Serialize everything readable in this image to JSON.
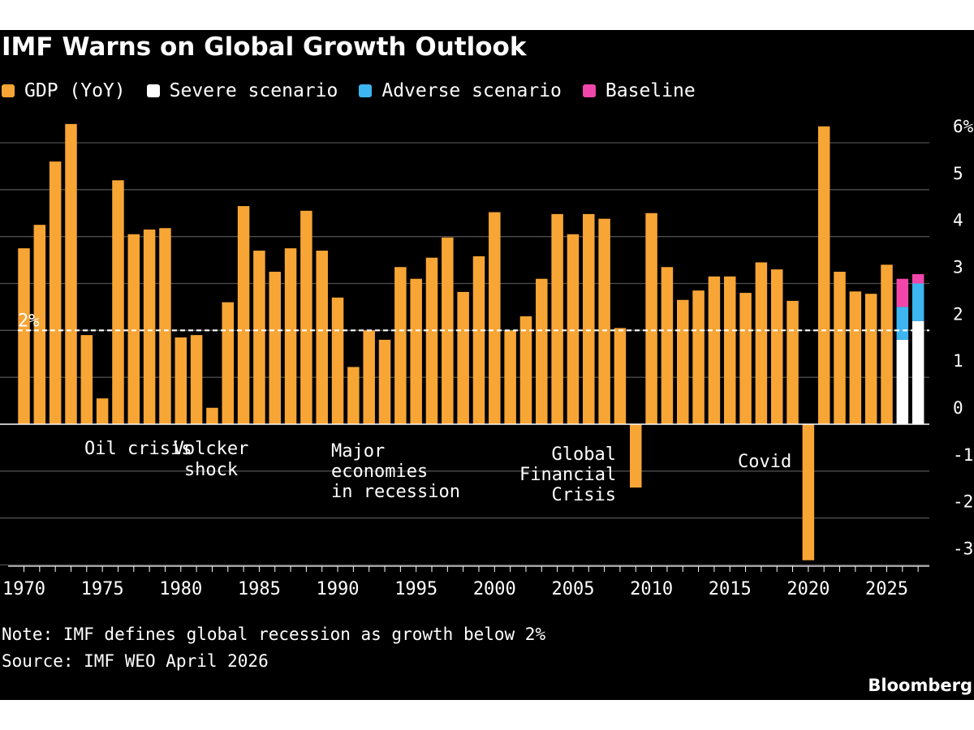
{
  "title": "IMF Warns on Global Growth Outlook",
  "legend": [
    {
      "label": "GDP (YoY)",
      "color": "#f7a535"
    },
    {
      "label": "Severe scenario",
      "color": "#ffffff"
    },
    {
      "label": "Adverse scenario",
      "color": "#3db5f0"
    },
    {
      "label": "Baseline",
      "color": "#f046aa"
    }
  ],
  "note": "Note: IMF defines global recession as growth below 2%",
  "source": "Source: IMF WEO April 2026",
  "brand": "Bloomberg",
  "annotations": {
    "oil": "Oil crisis",
    "volcker_1": "Volcker",
    "volcker_2": "shock",
    "major_1": "Major",
    "major_2": "economies",
    "major_3": "in recession",
    "gfc_1": "Global",
    "gfc_2": "Financial",
    "gfc_3": "Crisis",
    "covid": "Covid"
  },
  "chart_data": {
    "type": "bar",
    "title": "IMF Warns on Global Growth Outlook",
    "xlabel": "",
    "ylabel": "",
    "ylim": [
      -3,
      6
    ],
    "grid": true,
    "legend_position": "top",
    "yticks": [
      {
        "value": 6,
        "label": "6%"
      },
      {
        "value": 5,
        "label": "5"
      },
      {
        "value": 4,
        "label": "4"
      },
      {
        "value": 3,
        "label": "3"
      },
      {
        "value": 2,
        "label": "2"
      },
      {
        "value": 1,
        "label": "1"
      },
      {
        "value": 0,
        "label": "0"
      },
      {
        "value": -1,
        "label": "-1"
      },
      {
        "value": -2,
        "label": "-2"
      },
      {
        "value": -3,
        "label": "-3"
      }
    ],
    "xticks": [
      1970,
      1975,
      1980,
      1985,
      1990,
      1995,
      2000,
      2005,
      2010,
      2015,
      2020,
      2025
    ],
    "threshold": {
      "value": 2,
      "label": "2%"
    },
    "series": [
      {
        "name": "GDP (YoY)",
        "x": [
          1970,
          1971,
          1972,
          1973,
          1974,
          1975,
          1976,
          1977,
          1978,
          1979,
          1980,
          1981,
          1982,
          1983,
          1984,
          1985,
          1986,
          1987,
          1988,
          1989,
          1990,
          1991,
          1992,
          1993,
          1994,
          1995,
          1996,
          1997,
          1998,
          1999,
          2000,
          2001,
          2002,
          2003,
          2004,
          2005,
          2006,
          2007,
          2008,
          2009,
          2010,
          2011,
          2012,
          2013,
          2014,
          2015,
          2016,
          2017,
          2018,
          2019,
          2020,
          2021,
          2022,
          2023,
          2024,
          2025
        ],
        "values": [
          3.75,
          4.25,
          5.6,
          6.4,
          1.9,
          0.55,
          5.2,
          4.05,
          4.15,
          4.18,
          1.85,
          1.9,
          0.35,
          2.6,
          4.65,
          3.7,
          3.25,
          3.75,
          4.55,
          3.7,
          2.7,
          1.22,
          2.0,
          1.8,
          3.35,
          3.1,
          3.55,
          3.98,
          2.82,
          3.58,
          4.52,
          2.0,
          2.3,
          3.1,
          4.48,
          4.05,
          4.48,
          4.38,
          2.05,
          -1.35,
          4.5,
          3.35,
          2.65,
          2.85,
          3.15,
          3.15,
          2.8,
          3.45,
          3.3,
          2.63,
          -2.9,
          6.35,
          3.25,
          2.83,
          2.78,
          3.4
        ]
      },
      {
        "name": "Severe scenario",
        "x": [
          2026,
          2027
        ],
        "values": [
          1.8,
          2.2
        ]
      },
      {
        "name": "Adverse scenario",
        "x": [
          2026,
          2027
        ],
        "values": [
          2.5,
          3.0
        ]
      },
      {
        "name": "Baseline",
        "x": [
          2026,
          2027
        ],
        "values": [
          3.1,
          3.2
        ]
      }
    ]
  }
}
